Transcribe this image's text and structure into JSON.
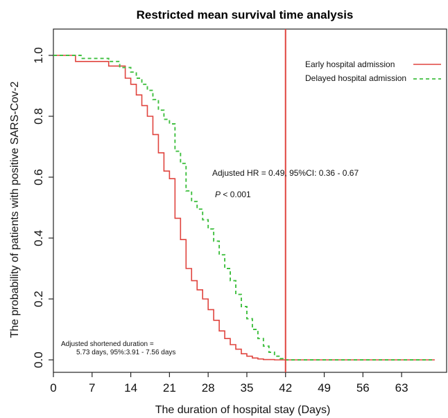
{
  "chart_data": {
    "type": "line",
    "title": "Restricted mean survival time analysis",
    "xlabel": "The duration of hospital stay (Days)",
    "ylabel": "The probability of patients with positive SARS-Cov-2",
    "xlim": [
      0,
      69
    ],
    "ylim": [
      0,
      1.05
    ],
    "xticks": [
      0,
      7,
      14,
      21,
      28,
      35,
      42,
      49,
      56,
      63
    ],
    "yticks": [
      0.0,
      0.2,
      0.4,
      0.6,
      0.8,
      1.0
    ],
    "ytick_labels": [
      "0.0",
      "0.2",
      "0.4",
      "0.6",
      "0.8",
      "1.0"
    ],
    "grid": false,
    "legend_position": "top-right",
    "reference_line": {
      "x": 42,
      "color": "#e0443e"
    },
    "series": [
      {
        "name": "Early hospital admission",
        "style": "solid",
        "color": "#e0443e",
        "step": true,
        "x": [
          0,
          4,
          10,
          13,
          14,
          15,
          16,
          17,
          18,
          19,
          20,
          21,
          22,
          23,
          24,
          25,
          26,
          27,
          28,
          29,
          30,
          31,
          32,
          33,
          34,
          35,
          36,
          37,
          38,
          40,
          42,
          69
        ],
        "y": [
          1.0,
          0.98,
          0.965,
          0.925,
          0.905,
          0.87,
          0.835,
          0.8,
          0.74,
          0.68,
          0.62,
          0.595,
          0.465,
          0.395,
          0.3,
          0.26,
          0.23,
          0.2,
          0.165,
          0.13,
          0.095,
          0.07,
          0.05,
          0.035,
          0.02,
          0.012,
          0.006,
          0.003,
          0.001,
          0.0,
          0.0,
          0.0
        ]
      },
      {
        "name": "Delayed hospital admission",
        "style": "dashed",
        "color": "#3fbf3f",
        "step": true,
        "x": [
          0,
          5,
          10,
          12,
          14,
          15,
          16,
          17,
          18,
          19,
          20,
          21,
          22,
          23,
          24,
          25,
          26,
          27,
          28,
          29,
          30,
          31,
          32,
          33,
          34,
          35,
          36,
          37,
          38,
          39,
          40,
          41,
          42,
          69
        ],
        "y": [
          1.0,
          0.99,
          0.98,
          0.96,
          0.945,
          0.925,
          0.905,
          0.885,
          0.855,
          0.82,
          0.79,
          0.775,
          0.685,
          0.645,
          0.555,
          0.52,
          0.495,
          0.46,
          0.43,
          0.39,
          0.345,
          0.3,
          0.26,
          0.215,
          0.175,
          0.135,
          0.1,
          0.07,
          0.045,
          0.025,
          0.012,
          0.004,
          0.0,
          0.0
        ]
      }
    ],
    "annotations": {
      "hr_text": "Adjusted HR = 0.49,  95%CI: 0.36 - 0.67",
      "p_symbol": "P",
      "p_rest": " < 0.001",
      "duration_line1": "Adjusted  shortened duration =",
      "duration_line2": "5.73 days, 95%:3.91 - 7.56 days"
    }
  }
}
